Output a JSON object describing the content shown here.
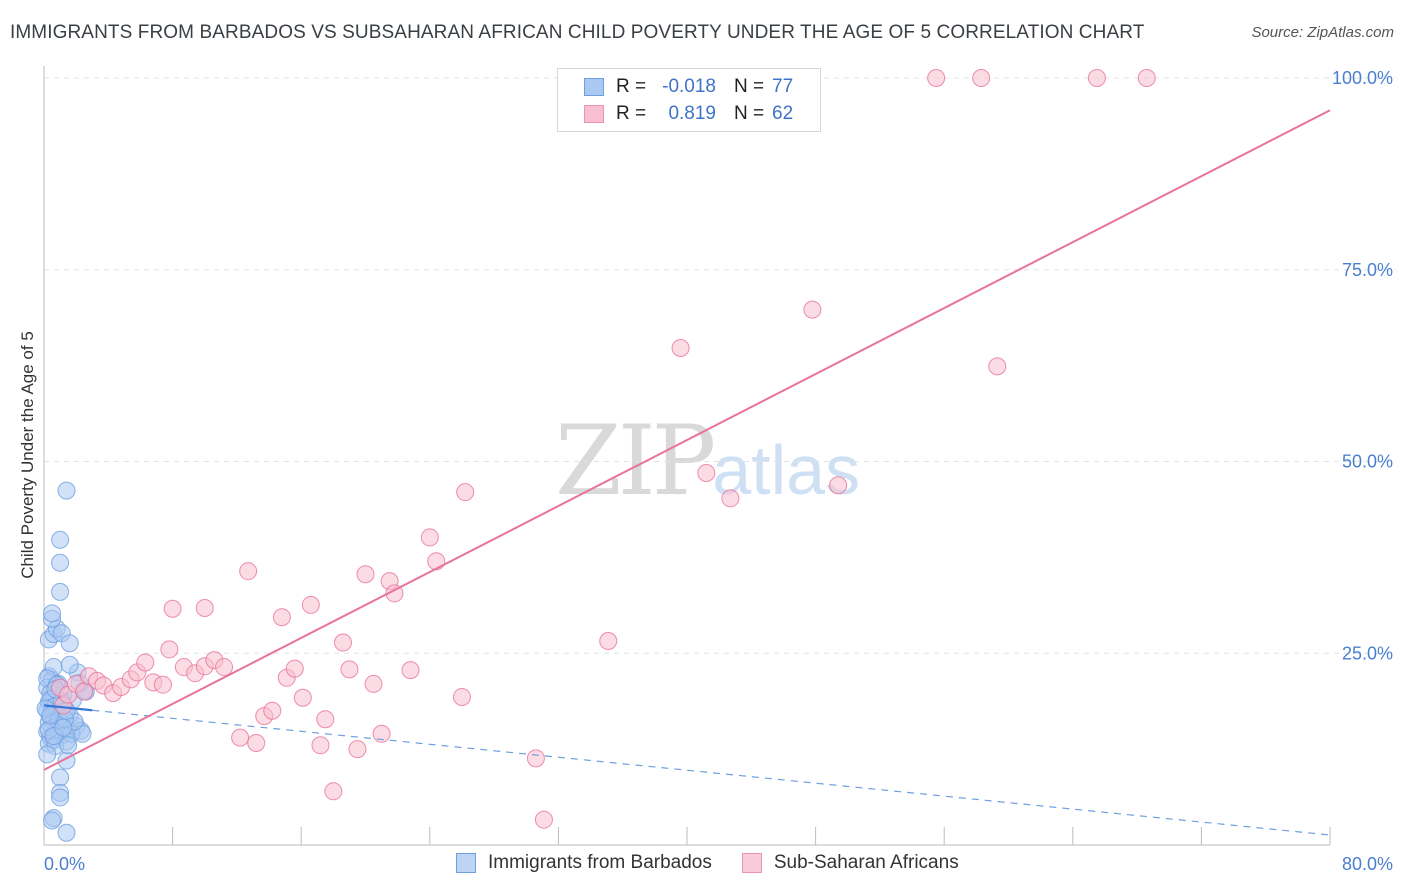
{
  "title": "IMMIGRANTS FROM BARBADOS VS SUBSAHARAN AFRICAN CHILD POVERTY UNDER THE AGE OF 5 CORRELATION CHART",
  "source": "Source: ZipAtlas.com",
  "watermark": {
    "zip": "ZIP",
    "atlas": "atlas"
  },
  "legend": {
    "rows": [
      {
        "r_label": "R =",
        "r_value": "-0.018",
        "n_label": "N =",
        "n_value": "77",
        "color": "#a9c8f2",
        "border": "#6e9fe0"
      },
      {
        "r_label": "R =",
        "r_value": "0.819",
        "n_label": "N =",
        "n_value": "62",
        "color": "#f7bfd0",
        "border": "#ee93b0"
      }
    ]
  },
  "bottom_legend": [
    {
      "label": "Immigrants from Barbados",
      "color": "#bcd5f5",
      "border": "#6e9fe0"
    },
    {
      "label": "Sub-Saharan Africans",
      "color": "#f9cbd9",
      "border": "#ee93b0"
    }
  ],
  "chart_data": {
    "type": "scatter",
    "title": "IMMIGRANTS FROM BARBADOS VS SUBSAHARAN AFRICAN CHILD POVERTY UNDER THE AGE OF 5 CORRELATION CHART",
    "xlabel": "",
    "ylabel": "Child Poverty Under the Age of 5",
    "xlim": [
      0,
      80
    ],
    "ylim": [
      0,
      100
    ],
    "x_tick_labels": [
      "0.0%",
      "80.0%"
    ],
    "y_ticks": [
      25,
      50,
      75,
      100
    ],
    "y_tick_labels": [
      "25.0%",
      "50.0%",
      "75.0%",
      "100.0%"
    ],
    "grid": true,
    "legend_position": "top-center",
    "series": [
      {
        "name": "Immigrants from Barbados",
        "color": "#6e9fe0",
        "fill": "#a9c8f2",
        "trend": {
          "x": [
            0,
            80
          ],
          "y": [
            18.2,
            1.3
          ],
          "style": "solid-then-dashed",
          "solid_until_x": 3.0
        },
        "points": [
          [
            0.3,
            22.0
          ],
          [
            0.5,
            21.5
          ],
          [
            0.2,
            20.5
          ],
          [
            0.8,
            20.8
          ],
          [
            0.4,
            19.8
          ],
          [
            0.6,
            19.2
          ],
          [
            0.3,
            18.6
          ],
          [
            0.9,
            18.3
          ],
          [
            0.5,
            18.0
          ],
          [
            0.2,
            17.5
          ],
          [
            0.7,
            17.2
          ],
          [
            1.0,
            17.0
          ],
          [
            0.4,
            16.6
          ],
          [
            0.6,
            16.3
          ],
          [
            0.3,
            16.0
          ],
          [
            1.2,
            15.8
          ],
          [
            0.8,
            15.5
          ],
          [
            0.5,
            15.2
          ],
          [
            1.5,
            15.0
          ],
          [
            0.2,
            14.8
          ],
          [
            0.9,
            14.6
          ],
          [
            1.1,
            14.3
          ],
          [
            0.4,
            14.0
          ],
          [
            0.6,
            13.7
          ],
          [
            1.4,
            13.5
          ],
          [
            0.3,
            13.2
          ],
          [
            0.7,
            12.9
          ],
          [
            1.3,
            17.8
          ],
          [
            1.6,
            16.9
          ],
          [
            2.0,
            15.5
          ],
          [
            2.3,
            14.9
          ],
          [
            1.8,
            18.9
          ],
          [
            2.5,
            20.2
          ],
          [
            2.1,
            22.5
          ],
          [
            0.3,
            26.8
          ],
          [
            0.6,
            27.5
          ],
          [
            0.8,
            28.2
          ],
          [
            1.1,
            27.6
          ],
          [
            0.5,
            29.5
          ],
          [
            1.6,
            26.3
          ],
          [
            1.0,
            33.0
          ],
          [
            1.0,
            36.8
          ],
          [
            1.0,
            39.8
          ],
          [
            1.4,
            46.2
          ],
          [
            0.5,
            30.2
          ],
          [
            0.6,
            23.2
          ],
          [
            1.6,
            23.5
          ],
          [
            0.9,
            21.0
          ],
          [
            1.2,
            19.6
          ],
          [
            0.2,
            11.8
          ],
          [
            1.4,
            11.0
          ],
          [
            1.0,
            8.8
          ],
          [
            1.0,
            6.8
          ],
          [
            1.0,
            6.2
          ],
          [
            0.6,
            3.5
          ],
          [
            0.5,
            3.2
          ],
          [
            1.4,
            1.6
          ],
          [
            0.4,
            19.0
          ],
          [
            0.7,
            18.1
          ],
          [
            1.7,
            14.5
          ],
          [
            2.4,
            14.5
          ],
          [
            1.5,
            13.0
          ],
          [
            0.9,
            16.2
          ],
          [
            1.9,
            16.1
          ],
          [
            0.3,
            15.0
          ],
          [
            0.1,
            17.8
          ],
          [
            0.2,
            21.7
          ],
          [
            0.8,
            20.9
          ],
          [
            1.1,
            18.7
          ],
          [
            1.3,
            16.4
          ],
          [
            0.6,
            14.2
          ],
          [
            2.6,
            20.0
          ],
          [
            0.4,
            16.9
          ],
          [
            1.2,
            15.3
          ],
          [
            0.7,
            20.3
          ],
          [
            1.4,
            17.5
          ],
          [
            2.2,
            21.1
          ]
        ]
      },
      {
        "name": "Sub-Saharan Africans",
        "color": "#e8739a",
        "fill": "#f7bfd0",
        "trend": {
          "x": [
            0,
            80
          ],
          "y": [
            9.8,
            95.8
          ],
          "style": "solid"
        },
        "points": [
          [
            1.2,
            18.2
          ],
          [
            1.0,
            20.5
          ],
          [
            1.5,
            19.6
          ],
          [
            2.0,
            21.0
          ],
          [
            2.5,
            20.0
          ],
          [
            2.8,
            22.0
          ],
          [
            3.3,
            21.4
          ],
          [
            3.7,
            20.8
          ],
          [
            4.3,
            19.8
          ],
          [
            4.8,
            20.6
          ],
          [
            5.4,
            21.6
          ],
          [
            5.8,
            22.5
          ],
          [
            6.3,
            23.8
          ],
          [
            6.8,
            21.2
          ],
          [
            7.4,
            20.9
          ],
          [
            7.8,
            25.5
          ],
          [
            8.7,
            23.2
          ],
          [
            9.4,
            22.4
          ],
          [
            10.0,
            23.3
          ],
          [
            10.6,
            24.1
          ],
          [
            11.2,
            23.2
          ],
          [
            12.2,
            14.0
          ],
          [
            13.2,
            13.3
          ],
          [
            12.7,
            35.7
          ],
          [
            13.7,
            16.8
          ],
          [
            14.2,
            17.5
          ],
          [
            14.8,
            29.7
          ],
          [
            15.1,
            21.8
          ],
          [
            15.6,
            23.0
          ],
          [
            16.1,
            19.2
          ],
          [
            16.6,
            31.3
          ],
          [
            17.2,
            13.0
          ],
          [
            17.5,
            16.4
          ],
          [
            18.0,
            7.0
          ],
          [
            18.6,
            26.4
          ],
          [
            19.0,
            22.9
          ],
          [
            19.5,
            12.5
          ],
          [
            20.0,
            35.3
          ],
          [
            20.5,
            21.0
          ],
          [
            21.0,
            14.5
          ],
          [
            21.5,
            34.4
          ],
          [
            21.8,
            32.8
          ],
          [
            22.8,
            22.8
          ],
          [
            24.0,
            40.1
          ],
          [
            24.4,
            37.0
          ],
          [
            26.0,
            19.3
          ],
          [
            26.2,
            46.0
          ],
          [
            30.6,
            11.3
          ],
          [
            31.1,
            3.3
          ],
          [
            35.1,
            26.6
          ],
          [
            39.6,
            64.8
          ],
          [
            41.2,
            48.5
          ],
          [
            42.7,
            45.2
          ],
          [
            47.8,
            69.8
          ],
          [
            49.4,
            46.9
          ],
          [
            55.5,
            100.0
          ],
          [
            58.3,
            100.0
          ],
          [
            59.3,
            62.4
          ],
          [
            65.5,
            100.0
          ],
          [
            68.6,
            100.0
          ],
          [
            8.0,
            30.8
          ],
          [
            10.0,
            30.9
          ]
        ]
      }
    ]
  }
}
